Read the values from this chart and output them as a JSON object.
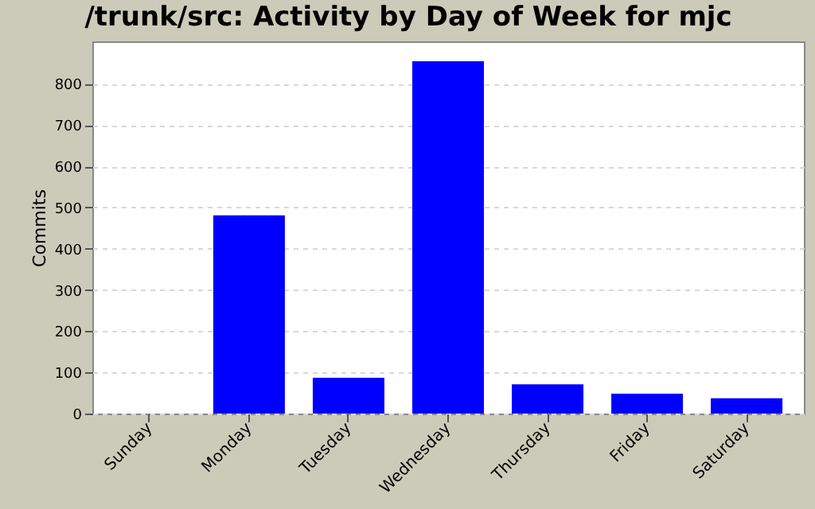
{
  "chart_data": {
    "type": "bar",
    "title": "/trunk/src: Activity by Day of Week for mjc",
    "ylabel": "Commits",
    "categories": [
      "Sunday",
      "Monday",
      "Tuesday",
      "Wednesday",
      "Thursday",
      "Friday",
      "Saturday"
    ],
    "values": [
      0,
      481,
      87,
      855,
      71,
      48,
      37
    ],
    "color": "#0000ff",
    "ylim": [
      0,
      903
    ],
    "yticks": [
      0,
      100,
      200,
      300,
      400,
      500,
      600,
      700,
      800
    ],
    "grid": "y"
  }
}
